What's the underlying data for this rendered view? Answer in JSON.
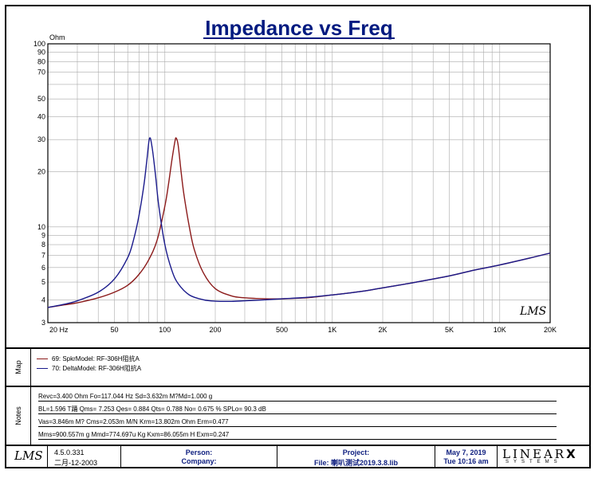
{
  "chart_data": {
    "type": "line",
    "title": "Impedance vs Freq",
    "y_unit": "Ohm",
    "x_scale": "log",
    "y_scale": "log",
    "xlim": [
      20,
      20000
    ],
    "ylim": [
      3,
      100
    ],
    "grid": true,
    "x_ticks": [
      {
        "v": 20,
        "label": "20  Hz"
      },
      {
        "v": 50,
        "label": "50"
      },
      {
        "v": 100,
        "label": "100"
      },
      {
        "v": 200,
        "label": "200"
      },
      {
        "v": 500,
        "label": "500"
      },
      {
        "v": 1000,
        "label": "1K"
      },
      {
        "v": 2000,
        "label": "2K"
      },
      {
        "v": 5000,
        "label": "5K"
      },
      {
        "v": 10000,
        "label": "10K"
      },
      {
        "v": 20000,
        "label": "20K"
      }
    ],
    "y_ticks": [
      {
        "v": 100,
        "label": "100"
      },
      {
        "v": 90,
        "label": "90"
      },
      {
        "v": 80,
        "label": "80"
      },
      {
        "v": 70,
        "label": "70"
      },
      {
        "v": 50,
        "label": "50"
      },
      {
        "v": 40,
        "label": "40"
      },
      {
        "v": 30,
        "label": "30"
      },
      {
        "v": 20,
        "label": "20"
      },
      {
        "v": 10,
        "label": "10"
      },
      {
        "v": 9,
        "label": "9"
      },
      {
        "v": 8,
        "label": "8"
      },
      {
        "v": 7,
        "label": "7"
      },
      {
        "v": 6,
        "label": "6"
      },
      {
        "v": 5,
        "label": "5"
      },
      {
        "v": 4,
        "label": "4"
      },
      {
        "v": 3,
        "label": "3"
      }
    ],
    "series": [
      {
        "name": "69: SpkrModel: RF-306H阻抗A",
        "color": "#8b1a1a",
        "x": [
          20,
          25,
          30,
          40,
          50,
          60,
          70,
          80,
          90,
          100,
          105,
          110,
          115,
          117,
          120,
          125,
          130,
          140,
          150,
          170,
          200,
          250,
          300,
          400,
          500,
          700,
          1000,
          1500,
          2000,
          3000,
          5000,
          7000,
          10000,
          15000,
          20000
        ],
        "y": [
          3.63,
          3.75,
          3.85,
          4.1,
          4.4,
          4.8,
          5.5,
          6.6,
          8.5,
          13,
          17,
          23,
          29.5,
          30.5,
          28,
          20,
          15,
          10,
          7.5,
          5.6,
          4.6,
          4.2,
          4.1,
          4.05,
          4.05,
          4.1,
          4.25,
          4.45,
          4.65,
          4.95,
          5.4,
          5.8,
          6.2,
          6.75,
          7.2
        ]
      },
      {
        "name": "70: DeltaModel: RF-306H阻抗A",
        "color": "#1a1a8b",
        "x": [
          20,
          25,
          30,
          40,
          50,
          60,
          65,
          70,
          75,
          78,
          81,
          84,
          88,
          92,
          100,
          110,
          120,
          140,
          170,
          200,
          250,
          300,
          400,
          500,
          700,
          1000,
          1500,
          2000,
          3000,
          5000,
          7000,
          10000,
          15000,
          20000
        ],
        "y": [
          3.63,
          3.78,
          3.95,
          4.4,
          5.2,
          6.8,
          8.5,
          11.5,
          17,
          23,
          30.5,
          27,
          19,
          13,
          8,
          5.8,
          4.9,
          4.25,
          4.0,
          3.93,
          3.92,
          3.95,
          4.0,
          4.05,
          4.12,
          4.25,
          4.45,
          4.65,
          4.95,
          5.4,
          5.8,
          6.2,
          6.75,
          7.2
        ]
      }
    ]
  },
  "plot_logo": "LMS",
  "map": {
    "label": "Map",
    "entries": [
      {
        "text": "69: SpkrModel: RF-306H阻抗A",
        "color": "#8b1a1a"
      },
      {
        "text": "70: DeltaModel: RF-306H阻抗A",
        "color": "#1a1a8b"
      }
    ]
  },
  "notes": {
    "label": "Notes",
    "rows": [
      "Revc=3.400 Ohm  Fo=117.044 Hz  Sd=3.632m  M?Md=1.000 g",
      "BL=1.596 T踊  Qms= 7.253  Qes= 0.884  Qts= 0.788  No= 0.675 %  SPLo= 90.3 dB",
      "Vas=3.846m M?  Cms=2.053m M/N  Krm=13.802m Ohm  Erm=0.477",
      "Mms=900.557m g  Mmd=774.697u Kg  Kxm=86.055m H  Exm=0.247"
    ]
  },
  "footer": {
    "logo": "LMS",
    "version": "4.5.0.331",
    "date": "二月-12-2003",
    "person_label": "Person:",
    "company_label": "Company:",
    "project_label": "Project:",
    "file_label": "File: 喇叭测试2019.3.8.lib",
    "print_date": "May  7, 2019",
    "print_time": "Tue 10:16 am",
    "brand": "LINEAR",
    "brand_x": "X",
    "brand_sub": "SYSTEMS"
  }
}
